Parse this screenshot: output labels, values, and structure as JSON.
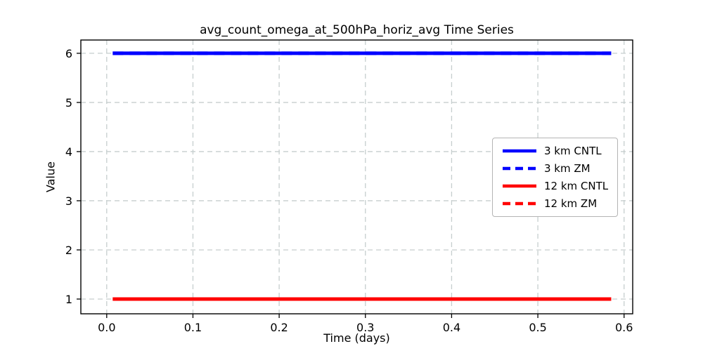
{
  "chart_data": {
    "type": "line",
    "title": "avg_count_omega_at_500hPa_horiz_avg Time Series",
    "xlabel": "Time (days)",
    "ylabel": "Value",
    "xlim": [
      -0.03,
      0.61
    ],
    "ylim": [
      0.7,
      6.27
    ],
    "x_ticks": [
      {
        "value": 0.0,
        "label": "0.0"
      },
      {
        "value": 0.1,
        "label": "0.1"
      },
      {
        "value": 0.2,
        "label": "0.2"
      },
      {
        "value": 0.3,
        "label": "0.3"
      },
      {
        "value": 0.4,
        "label": "0.4"
      },
      {
        "value": 0.5,
        "label": "0.5"
      },
      {
        "value": 0.6,
        "label": "0.6"
      }
    ],
    "y_ticks": [
      {
        "value": 1,
        "label": "1"
      },
      {
        "value": 2,
        "label": "2"
      },
      {
        "value": 3,
        "label": "3"
      },
      {
        "value": 4,
        "label": "4"
      },
      {
        "value": 5,
        "label": "5"
      },
      {
        "value": 6,
        "label": "6"
      }
    ],
    "grid": true,
    "grid_color": "#c6cece",
    "axis_color": "#000000",
    "legend_position": "center right",
    "x_data_range": [
      0.007,
      0.585
    ],
    "series": [
      {
        "name": "3 km CNTL",
        "color": "#0000ff",
        "linestyle": "solid",
        "value": 6
      },
      {
        "name": "3 km ZM",
        "color": "#0000ff",
        "linestyle": "dashed",
        "value": 6
      },
      {
        "name": "12 km CNTL",
        "color": "#ff0000",
        "linestyle": "solid",
        "value": 1
      },
      {
        "name": "12 km ZM",
        "color": "#ff0000",
        "linestyle": "dashed",
        "value": 1
      }
    ]
  }
}
